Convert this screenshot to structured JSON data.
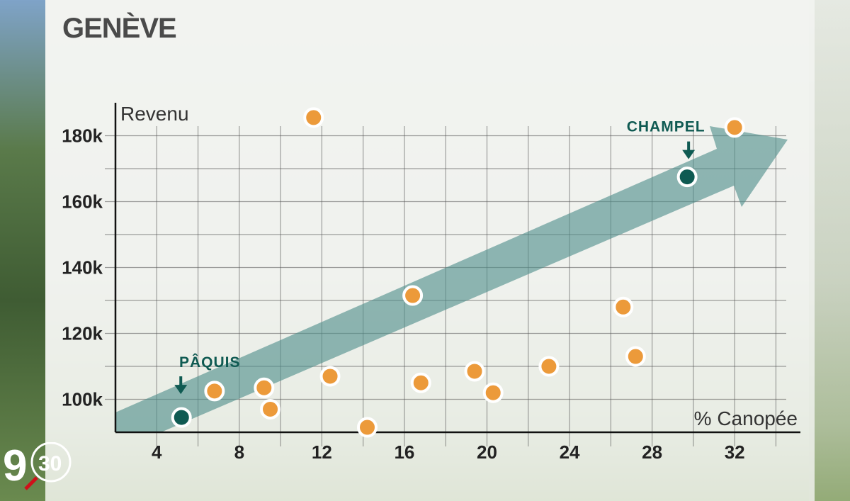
{
  "logo": {
    "text": "30"
  },
  "colors": {
    "point_orange": "#ec9a3a",
    "point_teal": "#0f5a52",
    "trend_arrow": "#4f8e8a",
    "annotation": "#0f5a52"
  },
  "chart_data": {
    "type": "scatter",
    "title": "GENÈVE",
    "xlabel": "% Canopée",
    "ylabel": "Revenu",
    "xlim": [
      2,
      34.5
    ],
    "ylim": [
      90000,
      190000
    ],
    "xticks": [
      4,
      8,
      12,
      16,
      20,
      24,
      28,
      32
    ],
    "xtick_labels": [
      "4",
      "8",
      "12",
      "16",
      "20",
      "24",
      "28",
      "32"
    ],
    "yticks": [
      100000,
      120000,
      140000,
      160000,
      180000
    ],
    "ytick_labels": [
      "100k",
      "120k",
      "140k",
      "160k",
      "180k"
    ],
    "grid": true,
    "points": [
      {
        "x": 11.6,
        "y": 185500,
        "group": "other"
      },
      {
        "x": 32.0,
        "y": 182500,
        "group": "other"
      },
      {
        "x": 29.7,
        "y": 167500,
        "group": "highlight",
        "label": "CHAMPEL"
      },
      {
        "x": 16.4,
        "y": 131500,
        "group": "other"
      },
      {
        "x": 26.6,
        "y": 128000,
        "group": "other"
      },
      {
        "x": 27.2,
        "y": 113000,
        "group": "other"
      },
      {
        "x": 23.0,
        "y": 110000,
        "group": "other"
      },
      {
        "x": 19.4,
        "y": 108500,
        "group": "other"
      },
      {
        "x": 12.4,
        "y": 107000,
        "group": "other"
      },
      {
        "x": 16.8,
        "y": 105000,
        "group": "other"
      },
      {
        "x": 9.2,
        "y": 103500,
        "group": "other"
      },
      {
        "x": 6.8,
        "y": 102500,
        "group": "other"
      },
      {
        "x": 20.3,
        "y": 102000,
        "group": "other"
      },
      {
        "x": 9.5,
        "y": 97000,
        "group": "other"
      },
      {
        "x": 5.2,
        "y": 94500,
        "group": "highlight",
        "label": "PÂQUIS"
      },
      {
        "x": 14.2,
        "y": 91500,
        "group": "other"
      }
    ]
  }
}
